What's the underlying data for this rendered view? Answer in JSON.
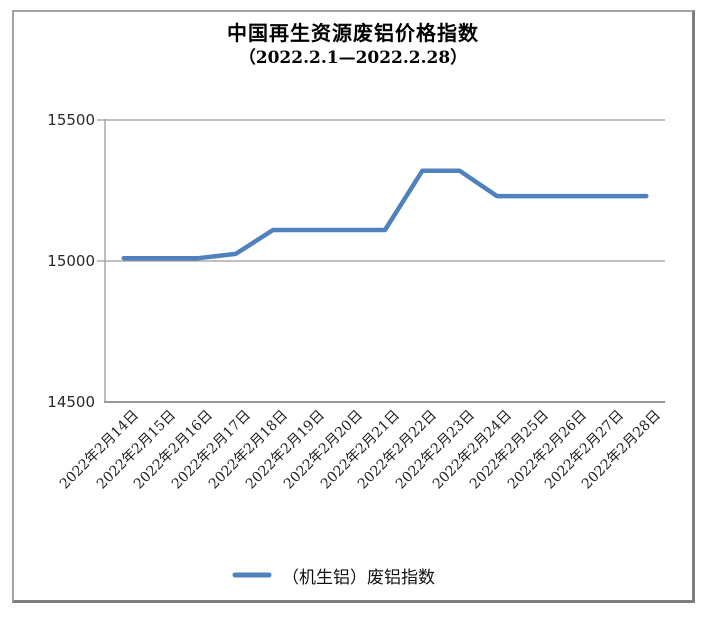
{
  "chart": {
    "legend_label": "（机生铝）废铝指数",
    "colors": {
      "line": "#4F81BD",
      "gridline": "#9C9C9C",
      "axis": "#8A8A8A",
      "frame": "#A3A3A3",
      "text": "#1F1F1F"
    }
  },
  "chart_data": {
    "type": "line",
    "title": "中国再生资源废铝价格指数",
    "subtitle": "（2022.2.1—2022.2.28）",
    "categories": [
      "2022年2月14日",
      "2022年2月15日",
      "2022年2月16日",
      "2022年2月17日",
      "2022年2月18日",
      "2022年2月19日",
      "2022年2月20日",
      "2022年2月21日",
      "2022年2月22日",
      "2022年2月23日",
      "2022年2月24日",
      "2022年2月25日",
      "2022年2月26日",
      "2022年2月27日",
      "2022年2月28日"
    ],
    "series": [
      {
        "name": "（机生铝）废铝指数",
        "color": "#4F81BD",
        "values": [
          15010,
          15010,
          15010,
          15025,
          15110,
          15110,
          15110,
          15110,
          15320,
          15320,
          15230,
          15230,
          15230,
          15230,
          15230
        ]
      }
    ],
    "ylim": [
      14500,
      15500
    ],
    "yticks": [
      15500,
      15000,
      14500
    ],
    "ytick_labels": [
      "15500",
      "15000",
      "14500"
    ],
    "grid": "horizontal",
    "legend_position": "bottom"
  }
}
